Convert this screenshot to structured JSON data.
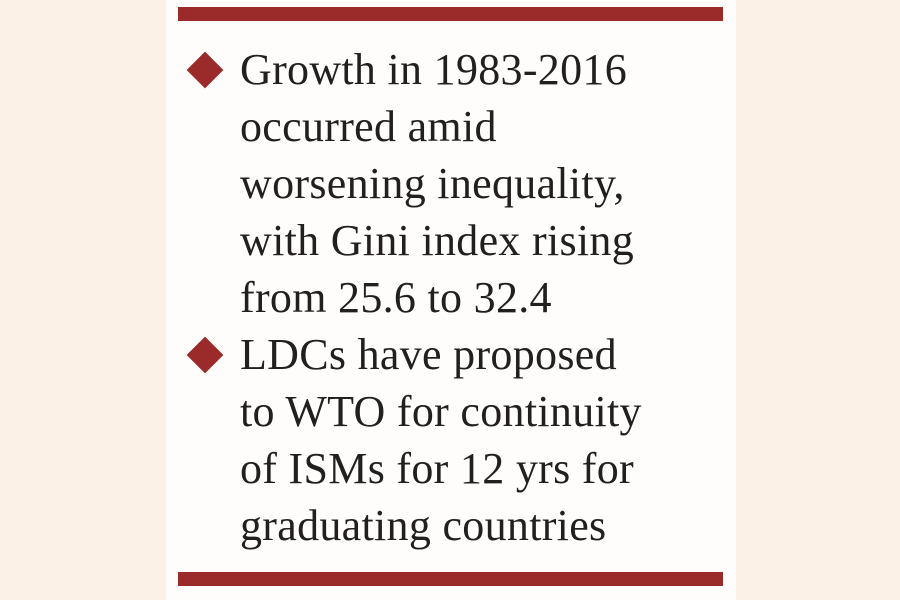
{
  "bullets": [
    {
      "lines": [
        "Growth in 1983-2016",
        "occurred amid",
        "worsening inequality,",
        "with Gini index rising",
        "from 25.6 to 32.4"
      ]
    },
    {
      "lines": [
        "LDCs have proposed",
        "to WTO for continuity",
        "of ISMs for 12 yrs for",
        "graduating countries"
      ]
    }
  ]
}
